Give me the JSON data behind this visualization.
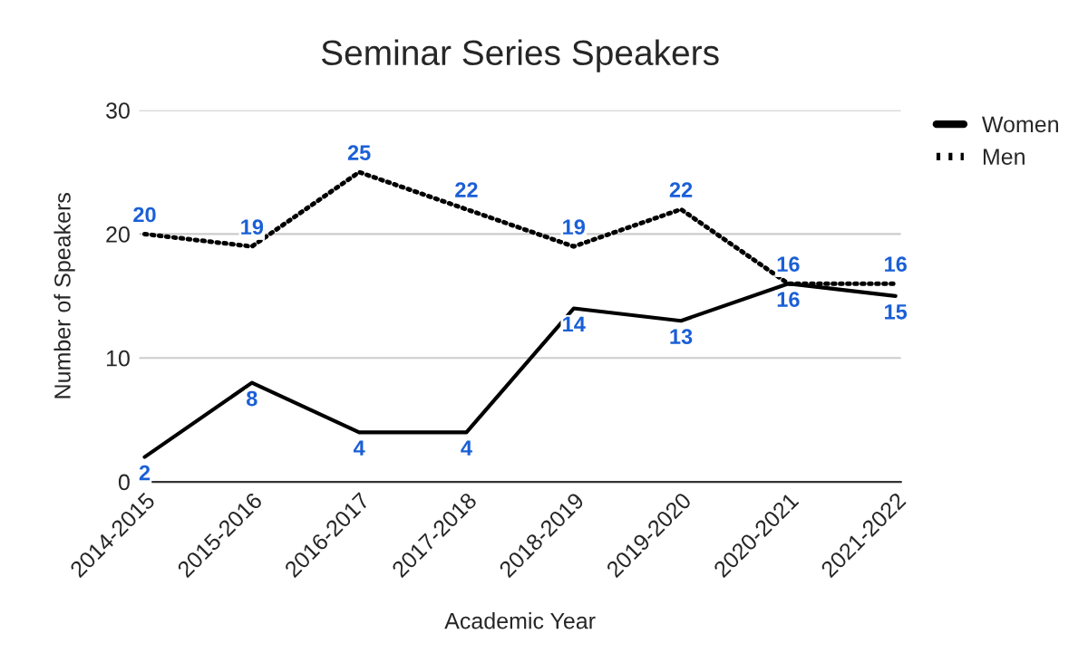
{
  "chart_data": {
    "type": "line",
    "title": "Seminar Series Speakers",
    "xlabel": "Academic Year",
    "ylabel": "Number of Speakers",
    "categories": [
      "2014-2015",
      "2015-2016",
      "2016-2017",
      "2017-2018",
      "2018-2019",
      "2019-2020",
      "2020-2021",
      "2021-2022"
    ],
    "series": [
      {
        "name": "Women",
        "color": "#000000",
        "line_style": "solid",
        "values": [
          2,
          8,
          4,
          4,
          14,
          13,
          16,
          15
        ]
      },
      {
        "name": "Men",
        "color": "#000000",
        "line_style": "dotted",
        "values": [
          20,
          19,
          25,
          22,
          19,
          22,
          16,
          16
        ]
      }
    ],
    "ylim": [
      0,
      30
    ],
    "yticks": [
      0,
      10,
      20,
      30
    ],
    "grid": "y",
    "legend": "top right",
    "data_labels": true,
    "marker": "none"
  }
}
